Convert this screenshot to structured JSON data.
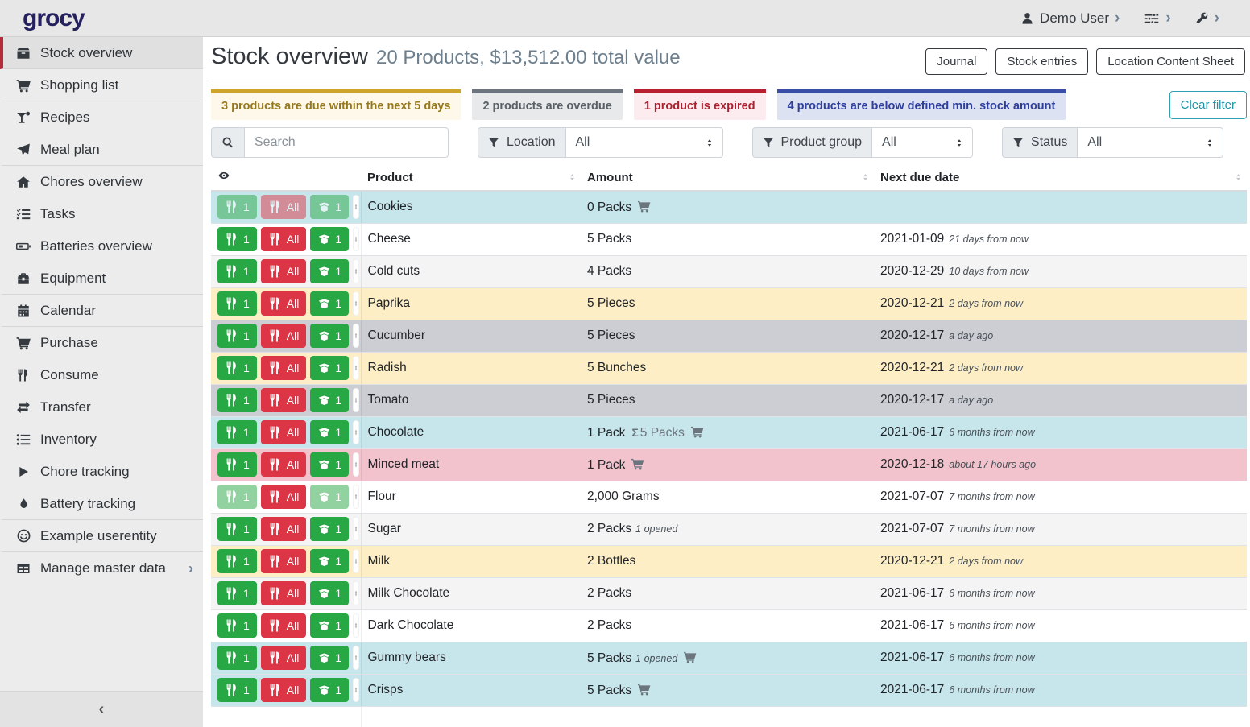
{
  "topbar": {
    "logo": "grocy",
    "user": {
      "icon": "user",
      "label": "Demo User"
    },
    "settings_icon": "sliders",
    "admin_icon": "wrench",
    "chevron": "›"
  },
  "sidebar": {
    "collapse_label": "‹",
    "chevron": "›",
    "items": [
      {
        "label": "Stock overview",
        "icon": "box",
        "active": true,
        "divider_after": true
      },
      {
        "label": "Shopping list",
        "icon": "shopping-cart",
        "divider_after": true
      },
      {
        "label": "Recipes",
        "icon": "cocktail"
      },
      {
        "label": "Meal plan",
        "icon": "paper-plane",
        "divider_after": true
      },
      {
        "label": "Chores overview",
        "icon": "home"
      },
      {
        "label": "Tasks",
        "icon": "tasks"
      },
      {
        "label": "Batteries overview",
        "icon": "battery"
      },
      {
        "label": "Equipment",
        "icon": "toolbox",
        "divider_after": true
      },
      {
        "label": "Calendar",
        "icon": "calendar",
        "divider_after": true
      },
      {
        "label": "Purchase",
        "icon": "shopping-cart"
      },
      {
        "label": "Consume",
        "icon": "utensils"
      },
      {
        "label": "Transfer",
        "icon": "exchange"
      },
      {
        "label": "Inventory",
        "icon": "list"
      },
      {
        "label": "Chore tracking",
        "icon": "play"
      },
      {
        "label": "Battery tracking",
        "icon": "tint",
        "divider_after": true
      },
      {
        "label": "Example userentity",
        "icon": "smile",
        "divider_after": true
      },
      {
        "label": "Manage master data",
        "icon": "table",
        "submenu": true
      }
    ]
  },
  "header": {
    "title": "Stock overview",
    "subtitle": "20 Products, $13,512.00 total value",
    "buttons": [
      {
        "label": "Journal"
      },
      {
        "label": "Stock entries"
      },
      {
        "label": "Location Content Sheet"
      }
    ]
  },
  "filters": {
    "badges": [
      {
        "text": "3 products are due within the next 5 days",
        "type": "due"
      },
      {
        "text": "2 products are overdue",
        "type": "overdue"
      },
      {
        "text": "1 product is expired",
        "type": "expired"
      },
      {
        "text": "4 products are below defined min. stock amount",
        "type": "belowmin"
      }
    ],
    "clear_label": "Clear filter",
    "search": {
      "icon": "search",
      "placeholder": "Search"
    },
    "selects": [
      {
        "label": "Location",
        "icon": "funnel",
        "value": "All"
      },
      {
        "label": "Product group",
        "icon": "funnel",
        "value": "All"
      },
      {
        "label": "Status",
        "icon": "funnel",
        "value": "All"
      }
    ]
  },
  "table": {
    "columns": [
      {
        "label": "Product"
      },
      {
        "label": "Amount"
      },
      {
        "label": "Next due date"
      }
    ],
    "row_buttons": {
      "consume_one": "1",
      "consume_all": "All",
      "open_one": "1"
    },
    "rows": [
      {
        "product": "Cookies",
        "amount": "0 Packs",
        "cart": true,
        "date": "",
        "rel": "",
        "highlight": "belowmin",
        "disabled": [
          "consume_one",
          "consume_all",
          "open_one"
        ]
      },
      {
        "product": "Cheese",
        "amount": "5 Packs",
        "date": "2021-01-09",
        "rel": "21 days from now"
      },
      {
        "product": "Cold cuts",
        "amount": "4 Packs",
        "date": "2020-12-29",
        "rel": "10 days from now",
        "stripe": true
      },
      {
        "product": "Paprika",
        "amount": "5 Pieces",
        "date": "2020-12-21",
        "rel": "2 days from now",
        "highlight": "due"
      },
      {
        "product": "Cucumber",
        "amount": "5 Pieces",
        "date": "2020-12-17",
        "rel": "a day ago",
        "highlight": "overdue"
      },
      {
        "product": "Radish",
        "amount": "5 Bunches",
        "date": "2020-12-21",
        "rel": "2 days from now",
        "highlight": "due"
      },
      {
        "product": "Tomato",
        "amount": "5 Pieces",
        "date": "2020-12-17",
        "rel": "a day ago",
        "highlight": "overdue"
      },
      {
        "product": "Chocolate",
        "amount": "1 Pack",
        "sum": "5 Packs",
        "cart": true,
        "date": "2021-06-17",
        "rel": "6 months from now",
        "highlight": "belowmin"
      },
      {
        "product": "Minced meat",
        "amount": "1 Pack",
        "cart": true,
        "date": "2020-12-18",
        "rel": "about 17 hours ago",
        "highlight": "expired"
      },
      {
        "product": "Flour",
        "amount": "2,000 Grams",
        "date": "2021-07-07",
        "rel": "7 months from now",
        "disabled": [
          "consume_one",
          "open_one"
        ]
      },
      {
        "product": "Sugar",
        "amount": "2 Packs",
        "opened": "1 opened",
        "date": "2021-07-07",
        "rel": "7 months from now",
        "stripe": true
      },
      {
        "product": "Milk",
        "amount": "2 Bottles",
        "date": "2020-12-21",
        "rel": "2 days from now",
        "highlight": "due"
      },
      {
        "product": "Milk Chocolate",
        "amount": "2 Packs",
        "date": "2021-06-17",
        "rel": "6 months from now",
        "stripe": true
      },
      {
        "product": "Dark Chocolate",
        "amount": "2 Packs",
        "date": "2021-06-17",
        "rel": "6 months from now"
      },
      {
        "product": "Gummy bears",
        "amount": "5 Packs",
        "opened": "1 opened",
        "cart": true,
        "date": "2021-06-17",
        "rel": "6 months from now",
        "highlight": "belowmin"
      },
      {
        "product": "Crisps",
        "amount": "5 Packs",
        "cart": true,
        "date": "2021-06-17",
        "rel": "6 months from now",
        "highlight": "belowmin"
      }
    ]
  },
  "colors": {
    "sidebar_active_accent": "#b52b3c",
    "button_green": "#28a745",
    "button_red": "#dc3545",
    "clear_filter_teal": "#2da0b2",
    "row_below_min": "#c6e6ec",
    "row_due_soon": "#fdeec6",
    "row_overdue": "#ccced3",
    "row_expired": "#f2c3cc",
    "badge_due": "#cfa42c",
    "badge_overdue": "#6c757d",
    "badge_expired": "#b81f30",
    "badge_belowmin": "#3a4ea8",
    "logo_navy": "#25215e"
  }
}
